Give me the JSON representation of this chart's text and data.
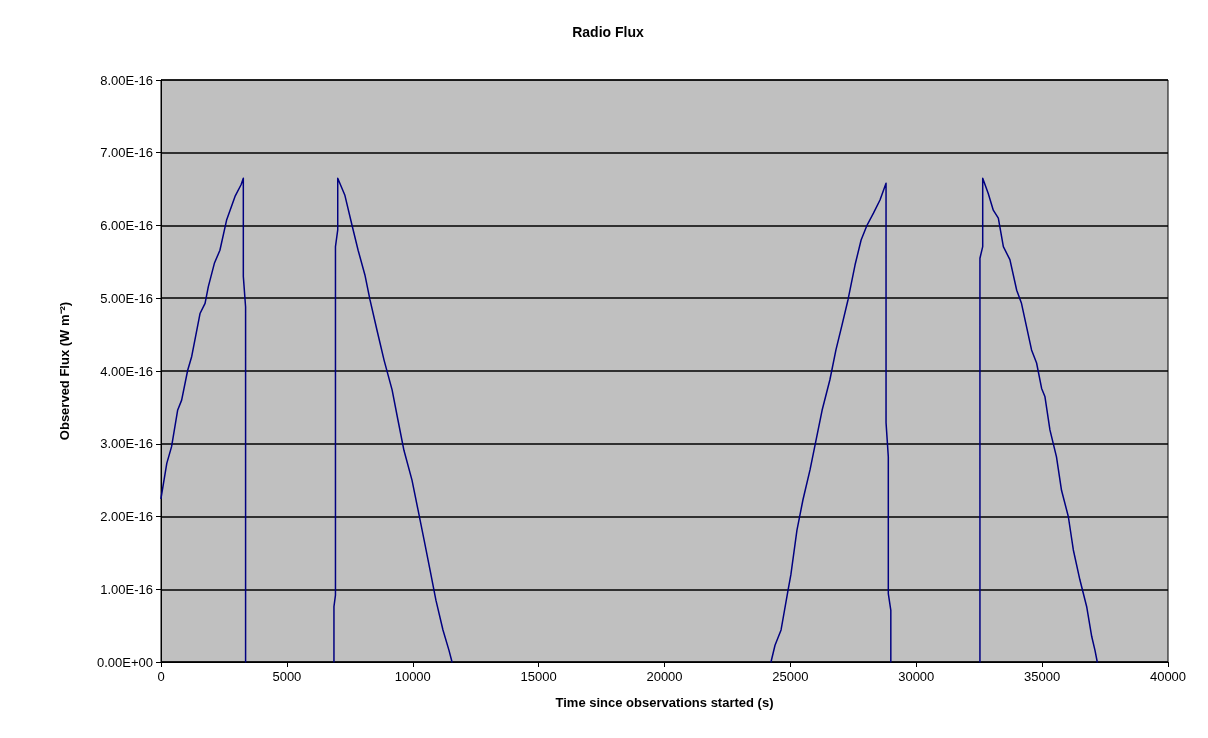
{
  "chart_data": {
    "type": "line",
    "title": "Radio Flux",
    "xlabel": "Time since observations started (s)",
    "ylabel": "Observed Flux (W m⁻²)",
    "xlim": [
      0,
      40000
    ],
    "xticks": [
      0,
      5000,
      10000,
      15000,
      20000,
      25000,
      30000,
      35000,
      40000
    ],
    "ylim": [
      0,
      8e-16
    ],
    "yticks": [
      {
        "value": 0,
        "label": "0.00E+00"
      },
      {
        "value": 1e-16,
        "label": "1.00E-16"
      },
      {
        "value": 2e-16,
        "label": "2.00E-16"
      },
      {
        "value": 3e-16,
        "label": "3.00E-16"
      },
      {
        "value": 4e-16,
        "label": "4.00E-16"
      },
      {
        "value": 5e-16,
        "label": "5.00E-16"
      },
      {
        "value": 6e-16,
        "label": "6.00E-16"
      },
      {
        "value": 7e-16,
        "label": "7.00E-16"
      },
      {
        "value": 8e-16,
        "label": "8.00E-16"
      }
    ],
    "grid": "y",
    "marker": "none",
    "line_style": "solid",
    "series": [
      {
        "color": "#000080",
        "x": [
          0,
          230,
          420,
          660,
          820,
          1060,
          1220,
          1550,
          1750,
          1880,
          2120,
          2340,
          2610,
          2940,
          3180,
          3270,
          3270,
          3360,
          3360,
          5000,
          6870,
          6870,
          6930,
          6930,
          7020,
          7020,
          7300,
          7590,
          7830,
          8100,
          8300,
          8580,
          8860,
          9180,
          9410,
          9650,
          9970,
          10210,
          10450,
          10690,
          10920,
          11200,
          11440,
          11560,
          18000,
          24230,
          24390,
          24630,
          24910,
          25020,
          25260,
          25500,
          25780,
          26020,
          26260,
          26570,
          26810,
          27050,
          27290,
          27570,
          27810,
          28040,
          28300,
          28560,
          28800,
          28800,
          28890,
          28890,
          28990,
          28990,
          30000,
          32530,
          32530,
          32640,
          32640,
          32860,
          33060,
          33260,
          33460,
          33720,
          33990,
          34180,
          34380,
          34580,
          34780,
          34980,
          35110,
          35310,
          35570,
          35770,
          36040,
          36240,
          36500,
          36770,
          36970,
          37100,
          37190
        ],
        "values": [
          2.25e-16,
          2.73e-16,
          2.96e-16,
          3.46e-16,
          3.6e-16,
          4.01e-16,
          4.2e-16,
          4.79e-16,
          4.93e-16,
          5.16e-16,
          5.48e-16,
          5.66e-16,
          6.08e-16,
          6.4e-16,
          6.56e-16,
          6.65e-16,
          5.3e-16,
          4.88e-16,
          0,
          null,
          0,
          7.6e-17,
          9.2e-17,
          5.71e-16,
          5.94e-16,
          6.65e-16,
          6.42e-16,
          6e-16,
          5.66e-16,
          5.32e-16,
          4.98e-16,
          4.56e-16,
          4.15e-16,
          3.74e-16,
          3.33e-16,
          2.91e-16,
          2.5e-16,
          2.09e-16,
          1.68e-16,
          1.26e-16,
          8.5e-17,
          4.4e-17,
          1.6e-17,
          0,
          null,
          0,
          2.3e-17,
          4.4e-17,
          9.9e-17,
          1.2e-16,
          1.81e-16,
          2.23e-16,
          2.64e-16,
          3.05e-16,
          3.46e-16,
          3.88e-16,
          4.29e-16,
          4.63e-16,
          4.98e-16,
          5.46e-16,
          5.8e-16,
          6e-16,
          6.17e-16,
          6.35e-16,
          6.58e-16,
          3.29e-16,
          2.82e-16,
          9.4e-17,
          7.1e-17,
          0,
          null,
          0,
          5.55e-16,
          5.71e-16,
          6.65e-16,
          6.44e-16,
          6.21e-16,
          6.1e-16,
          5.71e-16,
          5.53e-16,
          5.11e-16,
          4.93e-16,
          4.61e-16,
          4.29e-16,
          4.11e-16,
          3.76e-16,
          3.65e-16,
          3.19e-16,
          2.82e-16,
          2.36e-16,
          2e-16,
          1.54e-16,
          1.13e-16,
          7.6e-17,
          3.5e-17,
          1.6e-17,
          0
        ]
      }
    ]
  }
}
